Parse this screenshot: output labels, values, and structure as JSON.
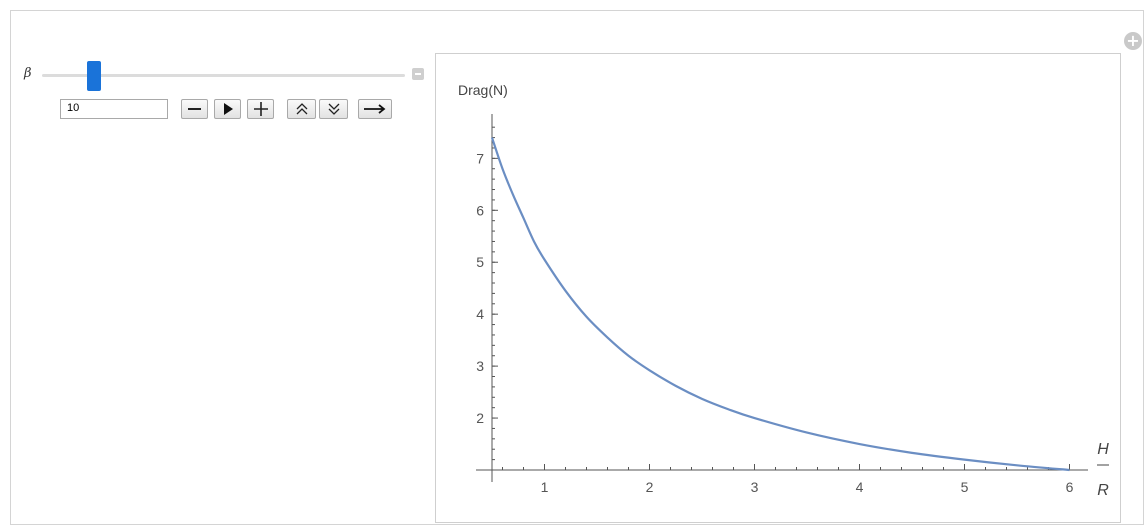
{
  "controls": {
    "slider_label": "β",
    "slider_value_text": "10",
    "slider_fraction": 0.13,
    "buttons": {
      "decrement_icon": "minus-icon",
      "play_icon": "play-icon",
      "increment_icon": "plus-icon",
      "faster_icon": "double-chevron-up-icon",
      "slower_icon": "double-chevron-down-icon",
      "direction_icon": "arrow-right-icon"
    }
  },
  "colors": {
    "curve": "#6b8ec3",
    "slider_thumb": "#1a73d9",
    "axis": "#555555"
  },
  "chart_data": {
    "type": "line",
    "title": "",
    "ylabel": "Drag(N)",
    "xlabel_numerator": "H",
    "xlabel_denominator": "R",
    "xlim": [
      0.5,
      6.1
    ],
    "ylim": [
      1.0,
      7.7
    ],
    "x_ticks": [
      "1",
      "2",
      "3",
      "4",
      "5",
      "6"
    ],
    "y_ticks": [
      "2",
      "3",
      "4",
      "5",
      "6",
      "7"
    ],
    "grid": false,
    "series": [
      {
        "x": [
          0.5,
          0.6,
          0.7,
          0.8,
          0.9,
          1.0,
          1.2,
          1.4,
          1.6,
          1.8,
          2.0,
          2.25,
          2.5,
          2.75,
          3.0,
          3.5,
          4.0,
          4.5,
          5.0,
          5.5,
          6.0
        ],
        "values": [
          7.4,
          6.8,
          6.3,
          5.85,
          5.4,
          5.05,
          4.45,
          3.95,
          3.55,
          3.2,
          2.92,
          2.62,
          2.37,
          2.17,
          2.0,
          1.72,
          1.5,
          1.33,
          1.2,
          1.09,
          1.0
        ]
      }
    ]
  }
}
